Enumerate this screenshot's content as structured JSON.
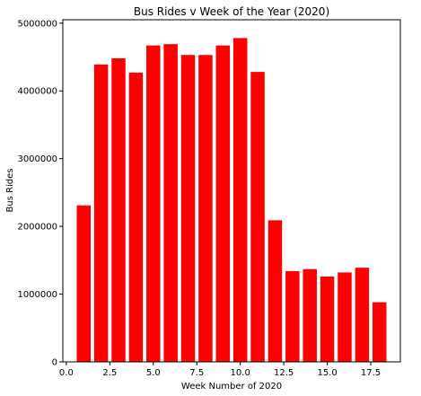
{
  "chart_data": {
    "type": "bar",
    "title": "Bus Rides v Week of the Year (2020)",
    "xlabel": "Week Number of 2020",
    "ylabel": "Bus Rides",
    "x": [
      1,
      2,
      3,
      4,
      5,
      6,
      7,
      8,
      9,
      10,
      11,
      12,
      13,
      14,
      15,
      16,
      17,
      18
    ],
    "values": [
      2310000,
      4390000,
      4480000,
      4270000,
      4670000,
      4690000,
      4530000,
      4530000,
      4670000,
      4780000,
      4280000,
      2090000,
      1340000,
      1370000,
      1260000,
      1320000,
      1390000,
      880000
    ],
    "xlim": [
      -0.2,
      19.2
    ],
    "ylim": [
      0,
      5050000
    ],
    "xticks": [
      0,
      2.5,
      5,
      7.5,
      10,
      12.5,
      15,
      17.5
    ],
    "xtick_labels": [
      "0.0",
      "2.5",
      "5.0",
      "7.5",
      "10.0",
      "12.5",
      "15.0",
      "17.5"
    ],
    "yticks": [
      0,
      1000000,
      2000000,
      3000000,
      4000000,
      5000000
    ],
    "ytick_labels": [
      "0",
      "1000000",
      "2000000",
      "3000000",
      "4000000",
      "5000000"
    ],
    "bar_color": "#ff0000",
    "grid": false,
    "legend": "none"
  }
}
